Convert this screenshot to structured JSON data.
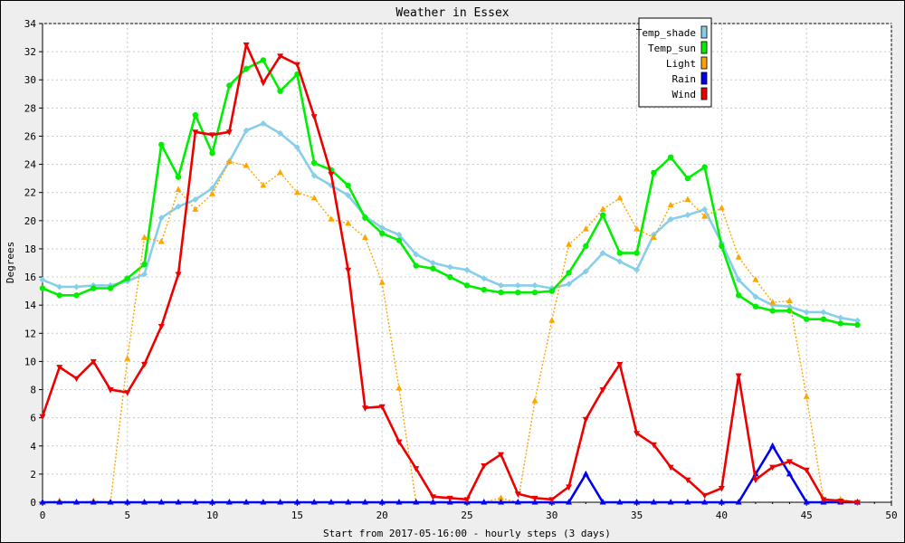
{
  "chart_data": {
    "type": "line",
    "title": "Weather in Essex",
    "xlabel": "Start from 2017-05-16:00 - hourly steps (3 days)",
    "ylabel": "Degrees",
    "xlim": [
      0,
      50
    ],
    "ylim": [
      0,
      34
    ],
    "x_ticks": [
      0,
      5,
      10,
      15,
      20,
      25,
      30,
      35,
      40,
      45,
      50
    ],
    "y_ticks": [
      0,
      2,
      4,
      6,
      8,
      10,
      12,
      14,
      16,
      18,
      20,
      22,
      24,
      26,
      28,
      30,
      32,
      34
    ],
    "grid": true,
    "legend_position": "top-right",
    "x": [
      0,
      1,
      2,
      3,
      4,
      5,
      6,
      7,
      8,
      9,
      10,
      11,
      12,
      13,
      14,
      15,
      16,
      17,
      18,
      19,
      20,
      21,
      22,
      23,
      24,
      25,
      26,
      27,
      28,
      29,
      30,
      31,
      32,
      33,
      34,
      35,
      36,
      37,
      38,
      39,
      40,
      41,
      42,
      43,
      44,
      45,
      46,
      47,
      48
    ],
    "series": [
      {
        "name": "Temp_shade",
        "color": "#87ceeb",
        "marker": "diamond",
        "style": "solid",
        "values": [
          15.8,
          15.3,
          15.3,
          15.4,
          15.4,
          15.7,
          16.2,
          20.2,
          21.0,
          21.5,
          22.3,
          24.2,
          26.4,
          26.9,
          26.2,
          25.2,
          23.2,
          22.5,
          21.8,
          20.3,
          19.5,
          19.0,
          17.6,
          17.0,
          16.7,
          16.5,
          15.9,
          15.4,
          15.4,
          15.4,
          15.2,
          15.5,
          16.4,
          17.7,
          17.1,
          16.5,
          19.0,
          20.1,
          20.4,
          20.8,
          18.4,
          15.8,
          14.6,
          14.0,
          13.9,
          13.5,
          13.5,
          13.1,
          12.9
        ]
      },
      {
        "name": "Temp_sun",
        "color": "#00ee00",
        "marker": "circle",
        "style": "solid",
        "values": [
          15.2,
          14.7,
          14.7,
          15.2,
          15.2,
          15.9,
          16.9,
          25.4,
          23.1,
          27.5,
          24.8,
          29.6,
          30.8,
          31.4,
          29.2,
          30.4,
          24.1,
          23.6,
          22.5,
          20.2,
          19.1,
          18.6,
          16.8,
          16.6,
          16.0,
          15.4,
          15.1,
          14.9,
          14.9,
          14.9,
          15.0,
          16.3,
          18.2,
          20.4,
          17.7,
          17.7,
          23.4,
          24.5,
          23.0,
          23.8,
          18.2,
          14.7,
          13.9,
          13.6,
          13.6,
          13.0,
          13.0,
          12.7,
          12.6
        ]
      },
      {
        "name": "Light",
        "color": "#ffa500",
        "marker": "triangle-up",
        "style": "dotted",
        "values": [
          0,
          0.1,
          0,
          0.1,
          0,
          10.2,
          18.8,
          18.5,
          22.2,
          20.8,
          21.9,
          24.2,
          23.9,
          22.5,
          23.4,
          22.0,
          21.6,
          20.1,
          19.8,
          18.8,
          15.6,
          8.1,
          0,
          0,
          0,
          0,
          0,
          0.3,
          0,
          7.2,
          12.9,
          18.3,
          19.4,
          20.8,
          21.6,
          19.4,
          18.8,
          21.1,
          21.5,
          20.3,
          20.9,
          17.4,
          15.8,
          14.2,
          14.3,
          7.5,
          0.2,
          0.2,
          0
        ]
      },
      {
        "name": "Rain",
        "color": "#0000ee",
        "marker": "triangle-up",
        "style": "solid",
        "values": [
          0,
          0,
          0,
          0,
          0,
          0,
          0,
          0,
          0,
          0,
          0,
          0,
          0,
          0,
          0,
          0,
          0,
          0,
          0,
          0,
          0,
          0,
          0,
          0,
          0,
          0,
          0,
          0,
          0,
          0,
          0,
          0,
          2.0,
          0,
          0,
          0,
          0,
          0,
          0,
          0,
          0,
          0,
          2.0,
          4.0,
          2.0,
          0,
          0,
          0,
          0
        ]
      },
      {
        "name": "Wind",
        "color": "#ee0000",
        "marker": "triangle-down",
        "style": "solid",
        "values": [
          6.1,
          9.6,
          8.8,
          10.0,
          8.0,
          7.8,
          9.8,
          12.5,
          16.2,
          26.3,
          26.1,
          26.3,
          32.5,
          29.8,
          31.7,
          31.1,
          27.4,
          23.3,
          16.5,
          6.7,
          6.8,
          4.3,
          2.4,
          0.4,
          0.3,
          0.2,
          2.6,
          3.4,
          0.6,
          0.3,
          0.2,
          1.1,
          5.9,
          8.0,
          9.8,
          4.9,
          4.1,
          2.5,
          1.6,
          0.5,
          1.0,
          9.0,
          1.6,
          2.5,
          2.9,
          2.3,
          0.2,
          0.1,
          0
        ]
      }
    ]
  }
}
